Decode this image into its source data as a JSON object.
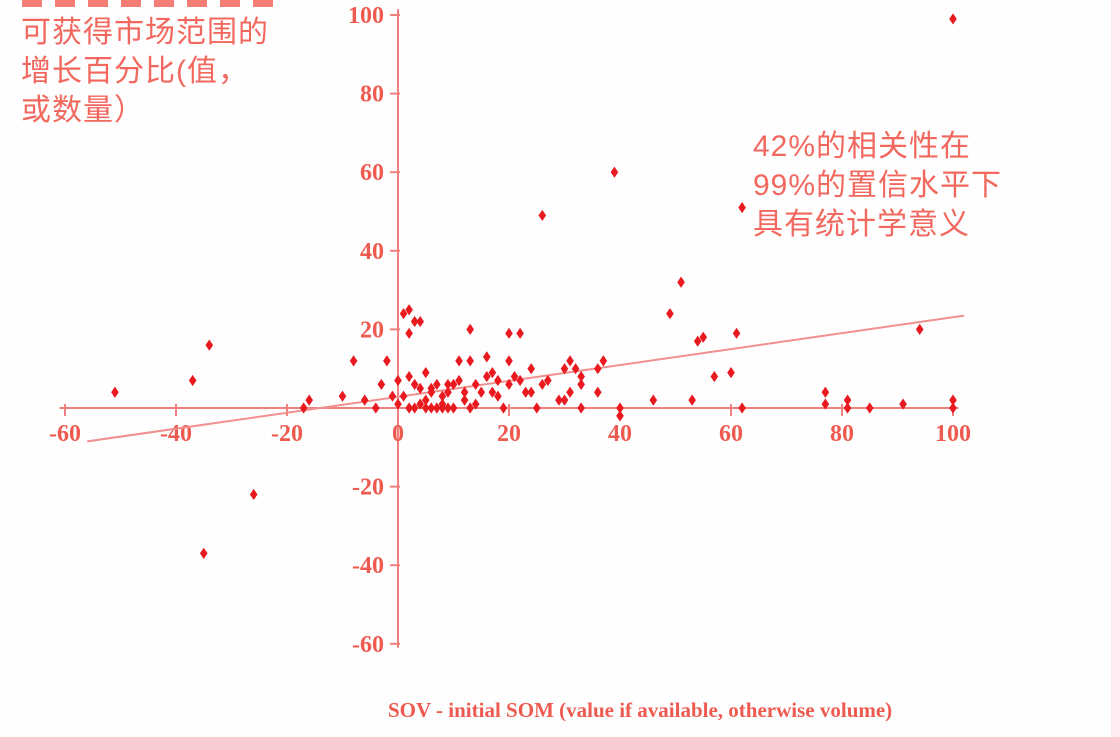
{
  "annotations": {
    "left": {
      "lines": [
        "可获得市场范围的",
        "增长百分比(值，",
        "或数量）"
      ],
      "color": "#f2685e"
    },
    "right": {
      "lines": [
        "42%的相关性在",
        "99%的置信水平下",
        "具有统计学意义"
      ],
      "color": "#f2685e"
    }
  },
  "chart_data": {
    "type": "scatter",
    "title": "",
    "xlabel": "SOV - initial SOM (value if available, otherwise volume)",
    "ylabel": "可获得市场范围的增长百分比(值，或数量）",
    "xlim": [
      -60,
      100
    ],
    "ylim": [
      -60,
      100
    ],
    "x_ticks": [
      -60,
      -40,
      -20,
      0,
      20,
      40,
      60,
      80,
      100
    ],
    "y_ticks": [
      -60,
      -40,
      -20,
      20,
      40,
      60,
      80,
      100
    ],
    "grid": false,
    "legend": null,
    "point_color": "#e8191f",
    "axis_color": "#f0807e",
    "tick_label_color": "#ee5a50",
    "trend_line": {
      "x1": -56,
      "y1": -8.5,
      "x2": 102,
      "y2": 23.5,
      "color": "#f0908e"
    },
    "points": [
      [
        -51,
        4
      ],
      [
        -37,
        7
      ],
      [
        -34,
        16
      ],
      [
        -35,
        -37
      ],
      [
        -26,
        -22
      ],
      [
        -17,
        0
      ],
      [
        -16,
        2
      ],
      [
        -10,
        3
      ],
      [
        -8,
        12
      ],
      [
        -6,
        2
      ],
      [
        -4,
        0
      ],
      [
        -3,
        6
      ],
      [
        -2,
        12
      ],
      [
        -1,
        3
      ],
      [
        0,
        7
      ],
      [
        0,
        1
      ],
      [
        1,
        24
      ],
      [
        2,
        25
      ],
      [
        3,
        22
      ],
      [
        2,
        19
      ],
      [
        1,
        3
      ],
      [
        2,
        8
      ],
      [
        2,
        0
      ],
      [
        3,
        6
      ],
      [
        3,
        0
      ],
      [
        4,
        22
      ],
      [
        4,
        1
      ],
      [
        4,
        5
      ],
      [
        5,
        0
      ],
      [
        5,
        2
      ],
      [
        5,
        9
      ],
      [
        6,
        5
      ],
      [
        6,
        4
      ],
      [
        6,
        0
      ],
      [
        7,
        0
      ],
      [
        7,
        6
      ],
      [
        8,
        3
      ],
      [
        8,
        1
      ],
      [
        8,
        0
      ],
      [
        9,
        6
      ],
      [
        9,
        4
      ],
      [
        9,
        0
      ],
      [
        10,
        0
      ],
      [
        10,
        6
      ],
      [
        11,
        12
      ],
      [
        11,
        7
      ],
      [
        12,
        4
      ],
      [
        12,
        2
      ],
      [
        13,
        0
      ],
      [
        13,
        12
      ],
      [
        13,
        20
      ],
      [
        14,
        6
      ],
      [
        14,
        1
      ],
      [
        15,
        4
      ],
      [
        16,
        13
      ],
      [
        16,
        8
      ],
      [
        17,
        4
      ],
      [
        17,
        9
      ],
      [
        18,
        7
      ],
      [
        18,
        3
      ],
      [
        19,
        0
      ],
      [
        20,
        6
      ],
      [
        20,
        12
      ],
      [
        20,
        19
      ],
      [
        21,
        8
      ],
      [
        22,
        7
      ],
      [
        22,
        19
      ],
      [
        23,
        4
      ],
      [
        24,
        10
      ],
      [
        24,
        4
      ],
      [
        25,
        0
      ],
      [
        26,
        6
      ],
      [
        26,
        49
      ],
      [
        27,
        7
      ],
      [
        29,
        2
      ],
      [
        30,
        10
      ],
      [
        30,
        2
      ],
      [
        31,
        4
      ],
      [
        31,
        12
      ],
      [
        32,
        10
      ],
      [
        33,
        8
      ],
      [
        33,
        6
      ],
      [
        33,
        0
      ],
      [
        36,
        10
      ],
      [
        36,
        4
      ],
      [
        37,
        12
      ],
      [
        39,
        60
      ],
      [
        40,
        0
      ],
      [
        40,
        -2
      ],
      [
        46,
        2
      ],
      [
        49,
        24
      ],
      [
        51,
        32
      ],
      [
        53,
        2
      ],
      [
        54,
        17
      ],
      [
        55,
        18
      ],
      [
        57,
        8
      ],
      [
        60,
        9
      ],
      [
        61,
        19
      ],
      [
        62,
        51
      ],
      [
        62,
        0
      ],
      [
        77,
        4
      ],
      [
        77,
        1
      ],
      [
        81,
        2
      ],
      [
        81,
        0
      ],
      [
        85,
        0
      ],
      [
        91,
        1
      ],
      [
        94,
        20
      ],
      [
        100,
        2
      ],
      [
        100,
        0
      ],
      [
        100,
        99
      ]
    ]
  },
  "footer": {
    "band_color": "#f8ccd2",
    "right_strip_color": "#fbdfe3"
  }
}
